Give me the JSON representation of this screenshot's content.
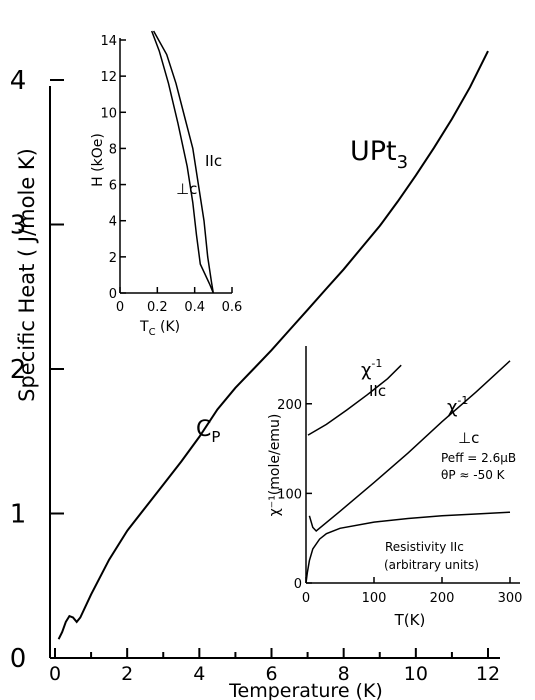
{
  "chart_data": [
    {
      "type": "line",
      "title": "UPt3",
      "xlabel": "Temperature (K)",
      "ylabel": "Specific Heat ( J/mole K)",
      "xlim": [
        0,
        13
      ],
      "ylim": [
        0,
        4.2
      ],
      "xticks": [
        0,
        2,
        4,
        6,
        8,
        10,
        12
      ],
      "yticks": [
        0,
        1,
        2,
        3,
        4
      ],
      "series": [
        {
          "name": "CP",
          "points": [
            [
              0.1,
              0.13
            ],
            [
              0.2,
              0.18
            ],
            [
              0.3,
              0.25
            ],
            [
              0.4,
              0.29
            ],
            [
              0.5,
              0.28
            ],
            [
              0.6,
              0.25
            ],
            [
              0.7,
              0.28
            ],
            [
              1.0,
              0.44
            ],
            [
              1.5,
              0.68
            ],
            [
              2.0,
              0.88
            ],
            [
              2.5,
              1.04
            ],
            [
              3.0,
              1.2
            ],
            [
              3.5,
              1.36
            ],
            [
              4.0,
              1.53
            ],
            [
              4.5,
              1.72
            ],
            [
              5.0,
              1.87
            ],
            [
              5.5,
              2.0
            ],
            [
              6.0,
              2.13
            ],
            [
              6.5,
              2.27
            ],
            [
              7.0,
              2.41
            ],
            [
              7.5,
              2.55
            ],
            [
              8.0,
              2.69
            ],
            [
              8.5,
              2.84
            ],
            [
              9.0,
              2.99
            ],
            [
              9.5,
              3.16
            ],
            [
              10.0,
              3.34
            ],
            [
              10.5,
              3.53
            ],
            [
              11.0,
              3.73
            ],
            [
              11.5,
              3.95
            ],
            [
              12.0,
              4.2
            ]
          ]
        }
      ],
      "annotations": [
        "UPt3",
        "CP"
      ]
    },
    {
      "type": "line",
      "xlabel": "TC (K)",
      "ylabel": "H (kOe)",
      "xlim": [
        0,
        0.6
      ],
      "ylim": [
        0,
        14
      ],
      "xticks": [
        "0",
        "0.2",
        "0.4",
        "0.6"
      ],
      "yticks": [
        "0",
        "2",
        "4",
        "6",
        "8",
        "10",
        "12",
        "14"
      ],
      "series": [
        {
          "name": "⊥c",
          "points": [
            [
              0.5,
              0
            ],
            [
              0.48,
              0.5
            ],
            [
              0.43,
              1.6
            ],
            [
              0.41,
              3.2
            ],
            [
              0.39,
              5.0
            ],
            [
              0.36,
              7.0
            ],
            [
              0.31,
              9.4
            ],
            [
              0.26,
              11.6
            ],
            [
              0.21,
              13.4
            ],
            [
              0.17,
              14.5
            ]
          ]
        },
        {
          "name": "IIc",
          "points": [
            [
              0.5,
              0
            ],
            [
              0.49,
              0.6
            ],
            [
              0.47,
              2.0
            ],
            [
              0.45,
              4.0
            ],
            [
              0.42,
              6.0
            ],
            [
              0.39,
              8.0
            ],
            [
              0.35,
              9.6
            ],
            [
              0.3,
              11.6
            ],
            [
              0.25,
              13.2
            ],
            [
              0.18,
              14.5
            ]
          ]
        }
      ],
      "annotations": [
        "⊥c",
        "IIc"
      ]
    },
    {
      "type": "line",
      "xlabel": "T(K)",
      "ylabel": "χ⁻¹(mole/emu)",
      "xlim": [
        0,
        300
      ],
      "ylim": [
        0,
        260
      ],
      "xticks": [
        "0",
        "100",
        "200",
        "300"
      ],
      "yticks": [
        "0",
        "100",
        "200"
      ],
      "series": [
        {
          "name": "χ⁻¹ IIc",
          "points": [
            [
              3,
              165
            ],
            [
              30,
              177
            ],
            [
              60,
              193
            ],
            [
              90,
              210
            ],
            [
              120,
              228
            ],
            [
              140,
              243
            ]
          ]
        },
        {
          "name": "χ⁻¹ ⊥c",
          "points": [
            [
              5,
              75
            ],
            [
              10,
              62
            ],
            [
              15,
              58
            ],
            [
              50,
              80
            ],
            [
              100,
              112
            ],
            [
              150,
              145
            ],
            [
              200,
              180
            ],
            [
              250,
              213
            ],
            [
              300,
              248
            ]
          ]
        },
        {
          "name": "Resistivity IIc (arbitrary units)",
          "points": [
            [
              0,
              0
            ],
            [
              2,
              12
            ],
            [
              5,
              25
            ],
            [
              10,
              38
            ],
            [
              20,
              49
            ],
            [
              30,
              55
            ],
            [
              50,
              61
            ],
            [
              100,
              68
            ],
            [
              150,
              72
            ],
            [
              200,
              75
            ],
            [
              250,
              77
            ],
            [
              300,
              79
            ]
          ]
        }
      ],
      "annotations": [
        "χ⁻¹",
        "IIc",
        "χ⁻¹",
        "⊥c",
        "Peff = 2.6μB",
        "θP ≈ -50 K",
        "Resistivity IIc",
        "(arbitrary units)"
      ]
    }
  ],
  "text": {
    "title": "UPt",
    "title_sub": "3",
    "xlabel": "Temperature (K)",
    "ylabel": "Specific Heat ( J/mole K)",
    "cp_main": "C",
    "cp_sub": "P",
    "in1_xlabel_main": "T",
    "in1_xlabel_sub": "C",
    "in1_xlabel_rest": " (K)",
    "in1_ylabel": "H (kOe)",
    "in1_perp": "⊥c",
    "in1_par": "IIc",
    "in2_xlabel": "T(K)",
    "in2_ylabel": "χ⁻¹(mole/emu)",
    "in2_chi_a": "χ",
    "in2_chi_a_sup": "-1",
    "in2_par": "IIc",
    "in2_chi_b": "χ",
    "in2_chi_b_sup": "-1",
    "in2_perp": "⊥c",
    "peff": "Peff = 2.6μB",
    "theta": "θP ≈ -50 K",
    "res1": "Resistivity IIc",
    "res2": "(arbitrary units)"
  }
}
